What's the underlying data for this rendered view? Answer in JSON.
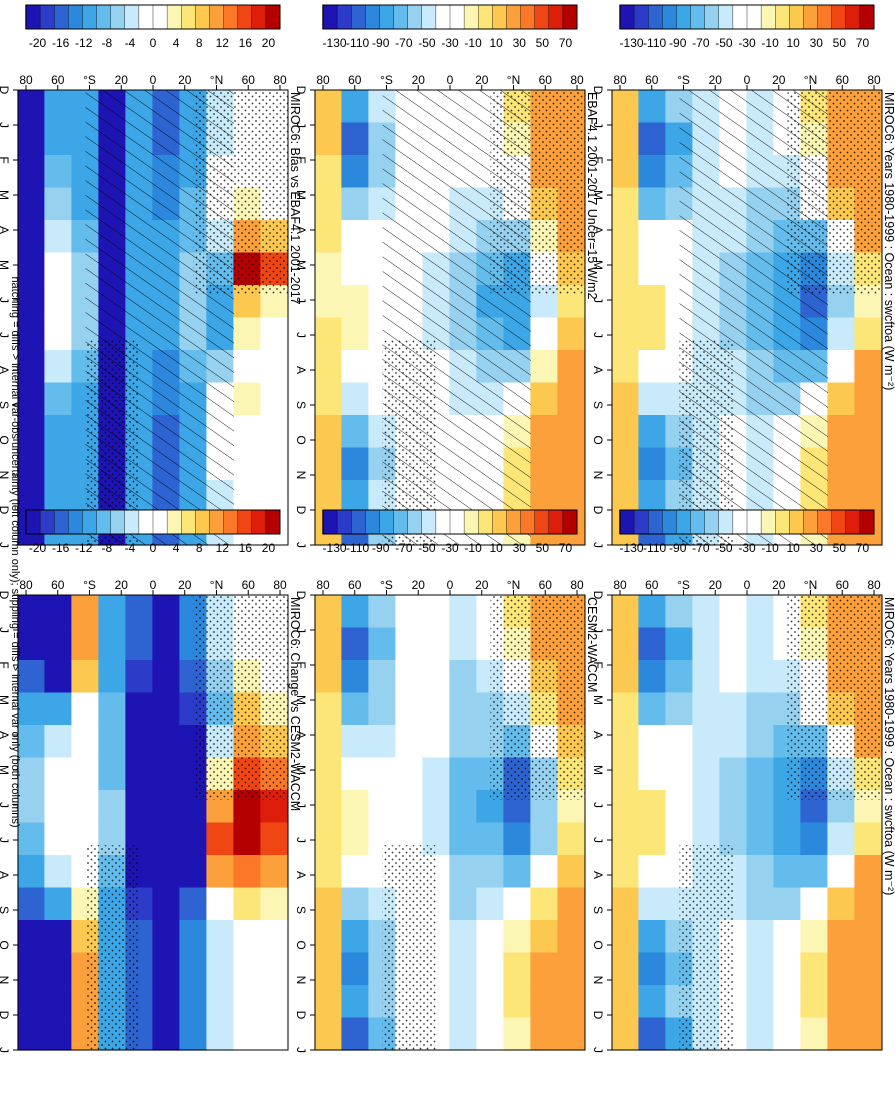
{
  "figure": {
    "footnote": "hatching = diffs > internal var-obs uncertainty (left column only); stippling = diffs > internal var only (both columns)"
  },
  "palettes": {
    "abs": [
      "#b40000",
      "#dc1e0a",
      "#f04614",
      "#fa7828",
      "#fca03c",
      "#fcc850",
      "#fce678",
      "#fcf6b4",
      "#ffffff",
      "#ffffff",
      "#c8eafa",
      "#96d2f0",
      "#64bcec",
      "#3ca6e6",
      "#2c88dc",
      "#2e64d2",
      "#2c3cc8",
      "#1e14b4"
    ],
    "diff": [
      "#b40000",
      "#dc1e0a",
      "#f04614",
      "#fa7828",
      "#fca03c",
      "#fcc850",
      "#fce678",
      "#fcf6b4",
      "#ffffff",
      "#ffffff",
      "#c8eafa",
      "#96d2f0",
      "#64bcec",
      "#3ca6e6",
      "#2c88dc",
      "#2e64d2",
      "#2c3cc8",
      "#1e14b4"
    ]
  },
  "colorbars": {
    "abs_labels": [
      "70",
      "50",
      "30",
      "10",
      "-10",
      "-30",
      "-50",
      "-70",
      "-90",
      "-110",
      "-130"
    ],
    "diff_labels": [
      "20",
      "16",
      "12",
      "8",
      "4",
      "0",
      "-4",
      "-8",
      "-12",
      "-16",
      "-20"
    ]
  },
  "axes": {
    "month_labels": [
      "D",
      "J",
      "F",
      "M",
      "A",
      "M",
      "J",
      "J",
      "A",
      "S",
      "O",
      "N",
      "D",
      "J"
    ],
    "lat_labels": [
      "80",
      "60",
      "°N",
      "20",
      "0",
      "20",
      "°S",
      "60",
      "80"
    ]
  },
  "chart_data": [
    {
      "type": "heatmap",
      "title": "MIROC6: Years 1980-1999 : Ocean : swcftoa (W m⁻²)",
      "column": "left",
      "palette": "abs",
      "x": [
        "Dec",
        "Jan",
        "Feb",
        "Mar",
        "Apr",
        "May",
        "Jun",
        "Jul",
        "Aug",
        "Sep",
        "Oct",
        "Nov",
        "Dec",
        "Jan"
      ],
      "y": [
        -90,
        -70,
        -50,
        -30,
        -10,
        10,
        30,
        50,
        70,
        90
      ],
      "values": [
        [
          15,
          15,
          10,
          5,
          0,
          -5,
          -5,
          0,
          5,
          10,
          15,
          15,
          15,
          15
        ],
        [
          -80,
          -110,
          -100,
          -70,
          -40,
          -20,
          0,
          5,
          -20,
          -50,
          -80,
          -100,
          -80,
          -110
        ],
        [
          -60,
          -80,
          -70,
          -60,
          -40,
          -30,
          -20,
          -20,
          -30,
          -50,
          -60,
          -70,
          -60,
          -80
        ],
        [
          -50,
          -50,
          -50,
          -50,
          -50,
          -50,
          -50,
          -50,
          -50,
          -50,
          -50,
          -50,
          -50,
          -50
        ],
        [
          -40,
          -40,
          -40,
          -45,
          -50,
          -55,
          -55,
          -55,
          -50,
          -45,
          -40,
          -40,
          -40,
          -40
        ],
        [
          -50,
          -50,
          -50,
          -55,
          -60,
          -70,
          -70,
          -70,
          -60,
          -55,
          -50,
          -50,
          -50,
          -50
        ],
        [
          -30,
          -40,
          -50,
          -60,
          -70,
          -80,
          -90,
          -80,
          -70,
          -55,
          -40,
          -30,
          -30,
          -40
        ],
        [
          -5,
          -10,
          -20,
          -40,
          -70,
          -100,
          -110,
          -100,
          -70,
          -40,
          -15,
          -5,
          -5,
          -10
        ],
        [
          25,
          25,
          20,
          10,
          -20,
          -50,
          -60,
          -50,
          -20,
          10,
          20,
          25,
          25,
          25
        ],
        [
          30,
          30,
          30,
          30,
          20,
          0,
          -10,
          0,
          20,
          30,
          30,
          30,
          30,
          30
        ]
      ]
    },
    {
      "type": "heatmap",
      "title": "MIROC6: Years 1980-1999 : Ocean : swcftoa (W m⁻²)",
      "column": "right",
      "palette": "abs",
      "x": [
        "Dec",
        "Jan",
        "Feb",
        "Mar",
        "Apr",
        "May",
        "Jun",
        "Jul",
        "Aug",
        "Sep",
        "Oct",
        "Nov",
        "Dec",
        "Jan"
      ],
      "y": [
        -90,
        -70,
        -50,
        -30,
        -10,
        10,
        30,
        50,
        70,
        90
      ],
      "values": [
        [
          15,
          15,
          10,
          5,
          0,
          -5,
          -5,
          0,
          5,
          10,
          15,
          15,
          15,
          15
        ],
        [
          -80,
          -110,
          -100,
          -70,
          -40,
          -20,
          0,
          5,
          -20,
          -50,
          -80,
          -100,
          -80,
          -110
        ],
        [
          -60,
          -80,
          -70,
          -60,
          -40,
          -30,
          -20,
          -20,
          -30,
          -50,
          -60,
          -70,
          -60,
          -80
        ],
        [
          -50,
          -50,
          -50,
          -50,
          -50,
          -50,
          -50,
          -50,
          -50,
          -50,
          -50,
          -50,
          -50,
          -50
        ],
        [
          -40,
          -40,
          -40,
          -45,
          -50,
          -55,
          -55,
          -55,
          -50,
          -45,
          -40,
          -40,
          -40,
          -40
        ],
        [
          -50,
          -50,
          -50,
          -55,
          -60,
          -70,
          -70,
          -70,
          -60,
          -55,
          -50,
          -50,
          -50,
          -50
        ],
        [
          -30,
          -40,
          -50,
          -60,
          -70,
          -80,
          -90,
          -80,
          -70,
          -55,
          -40,
          -30,
          -30,
          -40
        ],
        [
          -5,
          -10,
          -20,
          -40,
          -70,
          -100,
          -110,
          -100,
          -70,
          -40,
          -15,
          -5,
          -5,
          -10
        ],
        [
          25,
          25,
          20,
          10,
          -20,
          -50,
          -60,
          -50,
          -20,
          10,
          20,
          25,
          25,
          25
        ],
        [
          30,
          30,
          30,
          30,
          20,
          0,
          -10,
          0,
          20,
          30,
          30,
          30,
          30,
          30
        ]
      ]
    },
    {
      "type": "heatmap",
      "title": "EBAF4.1 2001-2017 Uncer=15 W/m2",
      "column": "left",
      "palette": "abs",
      "x": [
        "Dec",
        "Jan",
        "Feb",
        "Mar",
        "Apr",
        "May",
        "Jun",
        "Jul",
        "Aug",
        "Sep",
        "Oct",
        "Nov",
        "Dec",
        "Jan"
      ],
      "y": [
        -90,
        -70,
        -50,
        -30,
        -10,
        10,
        30,
        50,
        70,
        90
      ],
      "values": [
        [
          10,
          10,
          5,
          0,
          -5,
          -10,
          -10,
          -5,
          0,
          5,
          10,
          10,
          10,
          10
        ],
        [
          -80,
          -110,
          -95,
          -65,
          -40,
          -25,
          -15,
          -15,
          -25,
          -50,
          -75,
          -95,
          -80,
          -110
        ],
        [
          -50,
          -60,
          -55,
          -45,
          -35,
          -30,
          -25,
          -25,
          -30,
          -40,
          -50,
          -55,
          -50,
          -60
        ],
        [
          -30,
          -30,
          -30,
          -30,
          -30,
          -30,
          -30,
          -30,
          -30,
          -30,
          -30,
          -30,
          -30,
          -30
        ],
        [
          -30,
          -30,
          -30,
          -35,
          -40,
          -45,
          -45,
          -45,
          -40,
          -35,
          -30,
          -30,
          -30,
          -30
        ],
        [
          -35,
          -35,
          -40,
          -45,
          -50,
          -55,
          -60,
          -55,
          -50,
          -45,
          -40,
          -35,
          -35,
          -35
        ],
        [
          -20,
          -30,
          -40,
          -50,
          -60,
          -70,
          -80,
          -70,
          -60,
          -45,
          -30,
          -20,
          -20,
          -30
        ],
        [
          -5,
          -10,
          -20,
          -40,
          -60,
          -80,
          -90,
          -80,
          -60,
          -35,
          -15,
          -5,
          -5,
          -10
        ],
        [
          25,
          25,
          20,
          10,
          -10,
          -40,
          -50,
          -40,
          -15,
          10,
          20,
          25,
          25,
          25
        ],
        [
          30,
          30,
          30,
          30,
          20,
          10,
          0,
          10,
          20,
          30,
          30,
          30,
          30,
          30
        ]
      ]
    },
    {
      "type": "heatmap",
      "title": "CESM2-WACCM",
      "column": "right",
      "palette": "abs",
      "x": [
        "Dec",
        "Jan",
        "Feb",
        "Mar",
        "Apr",
        "May",
        "Jun",
        "Jul",
        "Aug",
        "Sep",
        "Oct",
        "Nov",
        "Dec",
        "Jan"
      ],
      "y": [
        -90,
        -70,
        -50,
        -30,
        -10,
        10,
        30,
        50,
        70,
        90
      ],
      "values": [
        [
          15,
          15,
          10,
          5,
          0,
          -5,
          -5,
          0,
          5,
          10,
          15,
          15,
          15,
          15
        ],
        [
          -80,
          -110,
          -100,
          -75,
          -50,
          -30,
          -15,
          -15,
          -30,
          -60,
          -85,
          -100,
          -80,
          -110
        ],
        [
          -60,
          -70,
          -65,
          -55,
          -45,
          -35,
          -30,
          -30,
          -35,
          -50,
          -60,
          -65,
          -60,
          -70
        ],
        [
          -40,
          -40,
          -40,
          -40,
          -40,
          -40,
          -40,
          -40,
          -40,
          -40,
          -40,
          -40,
          -40,
          -40
        ],
        [
          -30,
          -30,
          -30,
          -35,
          -40,
          -45,
          -45,
          -45,
          -40,
          -35,
          -30,
          -30,
          -30,
          -30
        ],
        [
          -50,
          -50,
          -55,
          -60,
          -65,
          -70,
          -70,
          -70,
          -65,
          -55,
          -50,
          -50,
          -50,
          -50
        ],
        [
          -25,
          -35,
          -45,
          -55,
          -65,
          -75,
          -80,
          -75,
          -65,
          -50,
          -35,
          -25,
          -25,
          -35
        ],
        [
          -5,
          -10,
          -25,
          -45,
          -75,
          -105,
          -110,
          -100,
          -70,
          -40,
          -15,
          -5,
          -5,
          -10
        ],
        [
          20,
          20,
          15,
          0,
          -25,
          -55,
          -65,
          -55,
          -25,
          5,
          15,
          20,
          20,
          20
        ],
        [
          30,
          30,
          30,
          25,
          15,
          -5,
          -15,
          -5,
          15,
          25,
          30,
          30,
          30,
          30
        ]
      ]
    },
    {
      "type": "heatmap",
      "title": "MIROC6: Bias vs EBAF4.1 2001-2017",
      "column": "left",
      "palette": "diff",
      "x": [
        "Dec",
        "Jan",
        "Feb",
        "Mar",
        "Apr",
        "May",
        "Jun",
        "Jul",
        "Aug",
        "Sep",
        "Oct",
        "Nov",
        "Dec",
        "Jan"
      ],
      "y": [
        -90,
        -70,
        -50,
        -30,
        -10,
        10,
        30,
        50,
        70,
        90
      ],
      "values": [
        [
          -20,
          -20,
          -20,
          -20,
          -20,
          -20,
          -20,
          -20,
          -20,
          -20,
          -20,
          -20,
          -20,
          -20
        ],
        [
          -10,
          -12,
          -8,
          -6,
          -4,
          -2,
          0,
          0,
          -4,
          -8,
          -10,
          -12,
          -10,
          -12
        ],
        [
          -12,
          -12,
          -10,
          -10,
          -8,
          -6,
          -6,
          -6,
          -8,
          -10,
          -12,
          -12,
          -12,
          -12
        ],
        [
          -22,
          -22,
          -22,
          -22,
          -22,
          -22,
          -22,
          -22,
          -22,
          -22,
          -22,
          -22,
          -22,
          -22
        ],
        [
          -12,
          -12,
          -12,
          -12,
          -12,
          -12,
          -12,
          -12,
          -12,
          -12,
          -12,
          -12,
          -12,
          -12
        ],
        [
          -16,
          -16,
          -14,
          -14,
          -12,
          -12,
          -12,
          -12,
          -14,
          -14,
          -16,
          -16,
          -16,
          -16
        ],
        [
          -10,
          -10,
          -10,
          -8,
          -8,
          -6,
          -6,
          -6,
          -8,
          -10,
          -10,
          -10,
          -10,
          -10
        ],
        [
          -4,
          -4,
          -2,
          0,
          -4,
          -8,
          -12,
          -10,
          -6,
          -2,
          0,
          -2,
          -4,
          -4
        ],
        [
          0,
          0,
          0,
          4,
          12,
          20,
          8,
          4,
          2,
          4,
          2,
          0,
          0,
          0
        ],
        [
          0,
          0,
          0,
          2,
          8,
          16,
          4,
          2,
          0,
          0,
          0,
          0,
          0,
          0
        ]
      ]
    },
    {
      "type": "heatmap",
      "title": "MIROC6: Change vs CESM2-WACCM",
      "column": "right",
      "palette": "diff",
      "x": [
        "Dec",
        "Jan",
        "Feb",
        "Mar",
        "Apr",
        "May",
        "Jun",
        "Jul",
        "Aug",
        "Sep",
        "Oct",
        "Nov",
        "Dec",
        "Jan"
      ],
      "y": [
        -90,
        -70,
        -50,
        -30,
        -10,
        10,
        30,
        50,
        70,
        90
      ],
      "values": [
        [
          -20,
          -20,
          -16,
          -12,
          -8,
          -6,
          -6,
          -8,
          -12,
          -16,
          -20,
          -20,
          -20,
          -20
        ],
        [
          -20,
          -20,
          -20,
          -12,
          -4,
          0,
          0,
          0,
          -4,
          -12,
          -20,
          -20,
          -20,
          -20
        ],
        [
          12,
          12,
          8,
          0,
          0,
          0,
          0,
          0,
          0,
          4,
          8,
          12,
          12,
          12
        ],
        [
          -12,
          -12,
          -10,
          -8,
          -8,
          -8,
          -6,
          -6,
          -8,
          -10,
          -12,
          -12,
          -12,
          -12
        ],
        [
          -16,
          -16,
          -18,
          -20,
          -22,
          -22,
          -22,
          -22,
          -20,
          -18,
          -16,
          -16,
          -16,
          -16
        ],
        [
          -20,
          -20,
          -22,
          -22,
          -22,
          -22,
          -22,
          -22,
          -22,
          -20,
          -20,
          -20,
          -20,
          -20
        ],
        [
          -14,
          -14,
          -16,
          -18,
          -20,
          -22,
          -22,
          -22,
          -20,
          -16,
          -14,
          -14,
          -14,
          -14
        ],
        [
          -4,
          -4,
          -6,
          -8,
          -4,
          4,
          12,
          16,
          10,
          2,
          -4,
          -4,
          -4,
          -4
        ],
        [
          0,
          0,
          4,
          8,
          12,
          16,
          20,
          20,
          14,
          6,
          0,
          0,
          0,
          0
        ],
        [
          0,
          0,
          2,
          4,
          8,
          14,
          18,
          16,
          10,
          4,
          0,
          0,
          0,
          0
        ]
      ]
    }
  ]
}
